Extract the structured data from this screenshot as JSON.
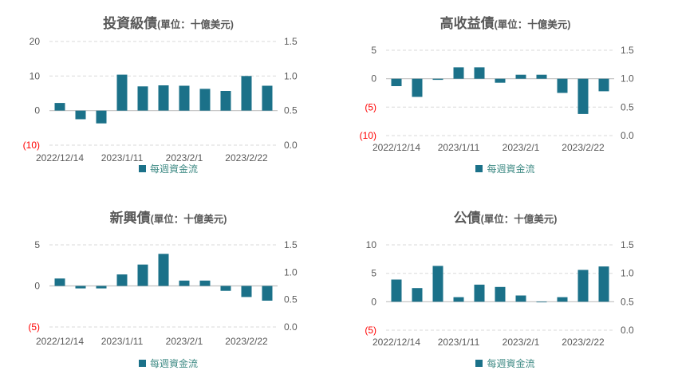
{
  "colors": {
    "bar": "#1B7189",
    "legend_text": "#3E8A84",
    "axis_text": "#595959",
    "negative_tick": "#FF0000",
    "gridline": "#D9D9D9",
    "axis_line": "#C0C0C0",
    "title_text": "#595959",
    "background": "#FFFFFF"
  },
  "chart_data": [
    {
      "type": "bar",
      "title": "投資級債",
      "unit_label": "(單位：十億美元)",
      "legend": "每週資金流",
      "legend_position": "bottom",
      "grid": true,
      "categories": [
        "2022/12/14",
        "2023/1/11",
        "2023/2/1",
        "2023/2/22"
      ],
      "category_bar_indices": [
        0,
        3,
        6,
        9
      ],
      "values": [
        2.2,
        -2.5,
        -3.7,
        10.4,
        7.0,
        7.3,
        7.2,
        6.3,
        5.7,
        10.0,
        7.2
      ],
      "left_axis": {
        "ylim": [
          -10,
          20
        ],
        "ticks": [
          {
            "label": "20",
            "value": 20
          },
          {
            "label": "10",
            "value": 10
          },
          {
            "label": "0",
            "value": 0
          },
          {
            "label": "(10)",
            "value": -10
          }
        ]
      },
      "right_axis": {
        "ylim": [
          0,
          1.5
        ],
        "ticks": [
          "1.5",
          "1.0",
          "0.5",
          "0.0"
        ]
      }
    },
    {
      "type": "bar",
      "title": "高收益債",
      "unit_label": "(單位：十億美元)",
      "legend": "每週資金流",
      "legend_position": "bottom",
      "grid": true,
      "categories": [
        "2022/12/14",
        "2023/1/11",
        "2023/2/1",
        "2023/2/22"
      ],
      "category_bar_indices": [
        0,
        3,
        6,
        9
      ],
      "values": [
        -1.3,
        -3.2,
        -0.2,
        2.0,
        2.0,
        -0.7,
        0.7,
        0.7,
        -2.5,
        -6.2,
        -2.2
      ],
      "left_axis": {
        "ylim": [
          -10,
          5
        ],
        "ticks": [
          {
            "label": "5",
            "value": 5
          },
          {
            "label": "0",
            "value": 0
          },
          {
            "label": "(5)",
            "value": -5
          },
          {
            "label": "(10)",
            "value": -10
          }
        ]
      },
      "right_axis": {
        "ylim": [
          0,
          1.5
        ],
        "ticks": [
          "1.5",
          "1.0",
          "0.5",
          "0.0"
        ]
      }
    },
    {
      "type": "bar",
      "title": "新興債",
      "unit_label": "(單位：十億美元)",
      "legend": "每週資金流",
      "legend_position": "bottom",
      "grid": true,
      "categories": [
        "2022/12/14",
        "2023/1/11",
        "2023/2/1",
        "2023/2/22"
      ],
      "category_bar_indices": [
        0,
        3,
        6,
        9
      ],
      "values": [
        0.9,
        -0.3,
        -0.3,
        1.4,
        2.6,
        3.9,
        0.65,
        0.65,
        -0.6,
        -1.35,
        -1.8
      ],
      "left_axis": {
        "ylim": [
          -5,
          5
        ],
        "ticks": [
          {
            "label": "5",
            "value": 5
          },
          {
            "label": "0",
            "value": 0
          },
          {
            "label": "(5)",
            "value": -5
          }
        ]
      },
      "right_axis": {
        "ylim": [
          0,
          1.5
        ],
        "ticks": [
          "1.5",
          "1.0",
          "0.5",
          "0.0"
        ]
      }
    },
    {
      "type": "bar",
      "title": "公債",
      "unit_label": "(單位：十億美元)",
      "legend": "每週資金流",
      "legend_position": "bottom",
      "grid": true,
      "categories": [
        "2022/12/14",
        "2023/1/11",
        "2023/2/1",
        "2023/2/22"
      ],
      "category_bar_indices": [
        0,
        3,
        6,
        9
      ],
      "values": [
        3.9,
        2.4,
        6.3,
        0.8,
        3.0,
        2.6,
        1.1,
        -0.1,
        0.8,
        5.6,
        6.2
      ],
      "left_axis": {
        "ylim": [
          -5,
          10
        ],
        "ticks": [
          {
            "label": "10",
            "value": 10
          },
          {
            "label": "5",
            "value": 5
          },
          {
            "label": "0",
            "value": 0
          },
          {
            "label": "(5)",
            "value": -5
          }
        ]
      },
      "right_axis": {
        "ylim": [
          0,
          1.5
        ],
        "ticks": [
          "1.5",
          "1.0",
          "0.5",
          "0.0"
        ]
      }
    }
  ]
}
